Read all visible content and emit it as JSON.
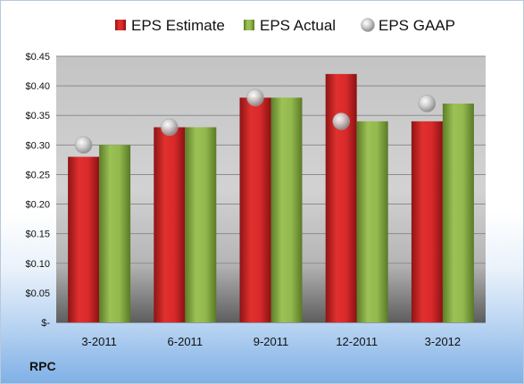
{
  "company": "RPC",
  "chart_data": {
    "type": "bar",
    "title": "",
    "xlabel": "",
    "ylabel": "",
    "categories": [
      "3-2011",
      "6-2011",
      "9-2011",
      "12-2011",
      "3-2012"
    ],
    "series": [
      {
        "name": "EPS Estimate",
        "kind": "bar",
        "color": "#d9262c",
        "values": [
          0.28,
          0.33,
          0.38,
          0.42,
          0.34
        ]
      },
      {
        "name": "EPS Actual",
        "kind": "bar",
        "color": "#8db44a",
        "values": [
          0.3,
          0.33,
          0.38,
          0.34,
          0.37
        ]
      },
      {
        "name": "EPS GAAP",
        "kind": "marker",
        "color": "#b8b8b8",
        "values": [
          0.3,
          0.33,
          0.38,
          0.34,
          0.37
        ]
      }
    ],
    "y_ticks": [
      "$-",
      "$0.05",
      "$0.10",
      "$0.15",
      "$0.20",
      "$0.25",
      "$0.30",
      "$0.35",
      "$0.40",
      "$0.45"
    ],
    "ylim": [
      0,
      0.45
    ],
    "grid": true,
    "legend_position": "top"
  }
}
